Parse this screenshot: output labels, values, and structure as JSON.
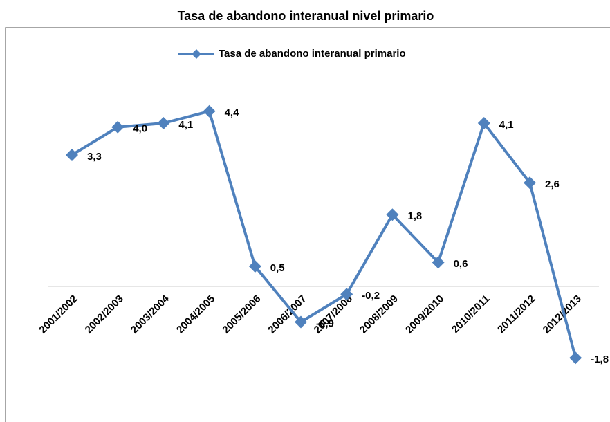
{
  "chart_data": {
    "type": "line",
    "title": "Tasa de abandono interanual nivel primario",
    "categories": [
      "2001/2002",
      "2002/2003",
      "2003/2004",
      "2004/2005",
      "2005/2006",
      "2006/2007",
      "2007/2008",
      "2008/2009",
      "2009/2010",
      "2010/2011",
      "2011/2012",
      "2012/2013"
    ],
    "series": [
      {
        "name": "Tasa de abandono interanual primario",
        "color": "#4f81bd",
        "values": [
          3.3,
          4.0,
          4.1,
          4.4,
          0.5,
          -0.9,
          -0.2,
          1.8,
          0.6,
          4.1,
          2.6,
          -1.8
        ],
        "value_labels": [
          "3,3",
          "4,0",
          "4,1",
          "4,4",
          "0,5",
          "-0,9",
          "-0,2",
          "1,8",
          "0,6",
          "4,1",
          "2,6",
          "-1,8"
        ]
      }
    ],
    "ylim": [
      -3.3,
      6.5
    ],
    "legend": "top"
  }
}
